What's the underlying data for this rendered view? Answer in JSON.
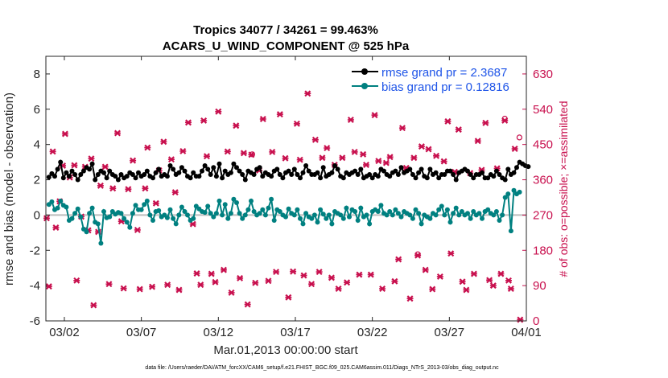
{
  "chart_data": {
    "type": "line",
    "title_line1": "Tropics 34077 / 34261 = 99.463%",
    "title_line2": "ACARS_U_WIND_COMPONENT @ 525 hPa",
    "xlabel": "Mar.01,2013 00:00:00 start",
    "ylabel_left": "rmse and bias (model - observation)",
    "ylabel_right": "# of obs: o=possible; ×=assimilated",
    "footnote": "data file: /Users/raeder/DAI/ATM_forcXX/CAM6_setup/f.e21.FHIST_BGC.f09_025.CAM6assim.011/Diags_NTrS_2013-03/obs_diag_output.nc",
    "x_range": [
      0.8,
      32.0
    ],
    "ylim_left": [
      -6,
      9
    ],
    "ylim_right": [
      0,
      675
    ],
    "x_ticks": [
      {
        "value": 2,
        "label": "03/02"
      },
      {
        "value": 7,
        "label": "03/07"
      },
      {
        "value": 12,
        "label": "03/12"
      },
      {
        "value": 17,
        "label": "03/17"
      },
      {
        "value": 22,
        "label": "03/22"
      },
      {
        "value": 27,
        "label": "03/27"
      },
      {
        "value": 32,
        "label": "04/01"
      }
    ],
    "y_ticks_left": [
      {
        "value": 8,
        "label": "8"
      },
      {
        "value": 6,
        "label": "6"
      },
      {
        "value": 4,
        "label": "4"
      },
      {
        "value": 2,
        "label": "2"
      },
      {
        "value": 0,
        "label": "0"
      },
      {
        "value": -2,
        "label": "-2"
      },
      {
        "value": -4,
        "label": "-4"
      },
      {
        "value": -6,
        "label": "-6"
      }
    ],
    "y_ticks_right": [
      {
        "value": 630,
        "label": "630"
      },
      {
        "value": 540,
        "label": "540"
      },
      {
        "value": 450,
        "label": "450"
      },
      {
        "value": 360,
        "label": "360"
      },
      {
        "value": 270,
        "label": "270"
      },
      {
        "value": 180,
        "label": "180"
      },
      {
        "value": 90,
        "label": "90"
      },
      {
        "value": 0,
        "label": "0"
      }
    ],
    "legend": [
      {
        "label": "rmse grand pr = 2.3687",
        "color": "#000000"
      },
      {
        "label": "bias grand pr = 0.12816",
        "color": "#008080"
      }
    ],
    "colors": {
      "rmse": "#000000",
      "bias": "#008080",
      "obs": "#c8104e",
      "zero_line": "#bdbdbd",
      "legend_text": "#1f55e8"
    },
    "series": [
      {
        "name": "rmse",
        "values": [
          2.15,
          2.35,
          2.2,
          2.6,
          3.0,
          2.1,
          2.4,
          2.2,
          2.5,
          2.3,
          2.0,
          2.3,
          2.5,
          2.7,
          2.6,
          2.9,
          2.0,
          2.3,
          2.5,
          2.4,
          2.1,
          2.5,
          2.3,
          2.2,
          2.0,
          2.3,
          2.1,
          2.2,
          2.4,
          2.3,
          2.1,
          2.4,
          2.2,
          2.3,
          2.5,
          2.2,
          2.1,
          2.4,
          2.6,
          2.2,
          2.3,
          2.2,
          2.8,
          2.6,
          2.3,
          2.4,
          2.7,
          2.5,
          2.2,
          2.1,
          2.4,
          2.2,
          2.2,
          2.5,
          2.8,
          2.6,
          2.3,
          2.7,
          2.2,
          2.9,
          2.1,
          2.5,
          2.3,
          2.4,
          2.9,
          2.7,
          2.5,
          2.3,
          2.0,
          2.5,
          2.4,
          2.3,
          2.6,
          2.7,
          2.2,
          2.4,
          2.3,
          2.2,
          2.5,
          2.6,
          2.3,
          2.1,
          2.4,
          2.5,
          2.3,
          2.6,
          2.3,
          2.1,
          2.4,
          2.8,
          2.5,
          2.3,
          2.3,
          2.4,
          2.1,
          2.7,
          2.2,
          2.3,
          2.4,
          2.8,
          2.6,
          2.2,
          2.1,
          2.4,
          2.3,
          2.4,
          2.5,
          2.3,
          2.6,
          2.1,
          2.2,
          2.3,
          2.1,
          2.3,
          2.2,
          2.6,
          2.5,
          2.3,
          2.2,
          2.4,
          2.5,
          2.3,
          2.7,
          2.4,
          2.5,
          2.6,
          2.3,
          2.1,
          2.4,
          2.6,
          2.2,
          2.1,
          2.6,
          2.3,
          2.4,
          2.1,
          2.3,
          2.3,
          2.5,
          2.5,
          2.3,
          2.0,
          2.4,
          2.5,
          2.6,
          2.5,
          2.3,
          2.1,
          2.3,
          2.3,
          2.4,
          2.1,
          2.1,
          2.3,
          2.2,
          2.5,
          2.3,
          2.1,
          2.0,
          2.6,
          2.3,
          2.4,
          2.7,
          3.0,
          2.9,
          2.8,
          2.75
        ],
        "x_start": 1.0,
        "x_step": 0.1875
      },
      {
        "name": "bias",
        "values": [
          0.6,
          0.75,
          0.3,
          0.4,
          0.8,
          0.55,
          0.45,
          -0.3,
          -0.2,
          0.1,
          0.35,
          -0.1,
          -0.8,
          -0.95,
          0.1,
          0.4,
          -0.4,
          -0.5,
          -1.6,
          0.2,
          -0.15,
          -0.1,
          0.2,
          0.05,
          0.15,
          0.1,
          -0.2,
          -0.4,
          -0.7,
          0.1,
          0.55,
          0.3,
          0.3,
          0.6,
          0.8,
          0.0,
          -0.3,
          0.2,
          0.25,
          -0.1,
          0.0,
          -0.15,
          0.3,
          -0.2,
          -0.5,
          0.0,
          0.45,
          0.2,
          0.0,
          -0.3,
          -0.2,
          0.5,
          0.35,
          0.2,
          0.15,
          0.5,
          0.1,
          -0.1,
          0.1,
          0.8,
          0.0,
          0.6,
          -0.2,
          0.1,
          0.9,
          0.7,
          0.1,
          -0.2,
          0.0,
          0.3,
          0.8,
          0.2,
          0.0,
          0.1,
          0.3,
          0.0,
          0.4,
          0.9,
          -0.3,
          0.3,
          0.2,
          0.0,
          -0.1,
          0.35,
          0.1,
          0.0,
          0.3,
          -0.2,
          -0.5,
          0.1,
          -0.1,
          -0.2,
          0.0,
          -0.4,
          0.3,
          0.05,
          -0.2,
          0.0,
          -0.5,
          0.2,
          0.1,
          0.0,
          -0.2,
          0.4,
          -0.1,
          0.3,
          0.2,
          -0.3,
          0.4,
          -0.1,
          0.0,
          -0.5,
          0.2,
          0.3,
          0.2,
          0.55,
          0.1,
          0.0,
          0.2,
          0.0,
          0.3,
          0.1,
          -0.1,
          0.2,
          0.1,
          0.0,
          -0.2,
          0.3,
          0.1,
          -0.5,
          0.0,
          -0.1,
          -0.2,
          0.1,
          0.0,
          0.3,
          0.5,
          0.0,
          0.3,
          -0.4,
          0.1,
          0.4,
          0.0,
          0.2,
          0.0,
          0.1,
          -0.2,
          0.2,
          0.0,
          0.1,
          -0.2,
          0.2,
          0.3,
          0.1,
          0.0,
          0.2,
          -0.3,
          0.0,
          1.0,
          1.2,
          -0.9,
          1.4,
          1.2,
          1.3
        ],
        "x_start": 1.0,
        "x_step": 0.1875
      }
    ],
    "obs_assimilated": [
      {
        "x": 0.85,
        "y": 262
      },
      {
        "x": 1.0,
        "y": 88
      },
      {
        "x": 1.25,
        "y": 432
      },
      {
        "x": 1.45,
        "y": 238
      },
      {
        "x": 1.7,
        "y": 305
      },
      {
        "x": 1.9,
        "y": 396
      },
      {
        "x": 2.05,
        "y": 477
      },
      {
        "x": 2.35,
        "y": 366
      },
      {
        "x": 2.65,
        "y": 397
      },
      {
        "x": 2.8,
        "y": 103
      },
      {
        "x": 3.1,
        "y": 266
      },
      {
        "x": 3.35,
        "y": 393
      },
      {
        "x": 3.55,
        "y": 231
      },
      {
        "x": 3.75,
        "y": 414
      },
      {
        "x": 3.9,
        "y": 40
      },
      {
        "x": 4.2,
        "y": 227
      },
      {
        "x": 4.35,
        "y": 345
      },
      {
        "x": 4.65,
        "y": 393
      },
      {
        "x": 4.9,
        "y": 94
      },
      {
        "x": 5.15,
        "y": 338
      },
      {
        "x": 5.45,
        "y": 479
      },
      {
        "x": 5.7,
        "y": 254
      },
      {
        "x": 5.85,
        "y": 83
      },
      {
        "x": 6.15,
        "y": 336
      },
      {
        "x": 6.45,
        "y": 409
      },
      {
        "x": 6.75,
        "y": 232
      },
      {
        "x": 6.9,
        "y": 81
      },
      {
        "x": 7.25,
        "y": 338
      },
      {
        "x": 7.4,
        "y": 442
      },
      {
        "x": 7.7,
        "y": 87
      },
      {
        "x": 7.95,
        "y": 300
      },
      {
        "x": 8.15,
        "y": 384
      },
      {
        "x": 8.45,
        "y": 457
      },
      {
        "x": 8.7,
        "y": 92
      },
      {
        "x": 8.95,
        "y": 412
      },
      {
        "x": 9.2,
        "y": 328
      },
      {
        "x": 9.45,
        "y": 79
      },
      {
        "x": 9.7,
        "y": 433
      },
      {
        "x": 10.05,
        "y": 506
      },
      {
        "x": 10.35,
        "y": 247
      },
      {
        "x": 10.6,
        "y": 121
      },
      {
        "x": 10.85,
        "y": 92
      },
      {
        "x": 11.05,
        "y": 511
      },
      {
        "x": 11.25,
        "y": 420
      },
      {
        "x": 11.55,
        "y": 120
      },
      {
        "x": 11.8,
        "y": 99
      },
      {
        "x": 12.0,
        "y": 534
      },
      {
        "x": 12.35,
        "y": 130
      },
      {
        "x": 12.6,
        "y": 432
      },
      {
        "x": 12.85,
        "y": 72
      },
      {
        "x": 13.15,
        "y": 498
      },
      {
        "x": 13.4,
        "y": 109
      },
      {
        "x": 13.65,
        "y": 428
      },
      {
        "x": 13.9,
        "y": 42
      },
      {
        "x": 14.15,
        "y": 424
      },
      {
        "x": 14.4,
        "y": 97
      },
      {
        "x": 14.65,
        "y": 384
      },
      {
        "x": 14.9,
        "y": 515
      },
      {
        "x": 15.25,
        "y": 102
      },
      {
        "x": 15.5,
        "y": 431
      },
      {
        "x": 15.75,
        "y": 125
      },
      {
        "x": 16.0,
        "y": 527
      },
      {
        "x": 16.35,
        "y": 415
      },
      {
        "x": 16.55,
        "y": 60
      },
      {
        "x": 16.85,
        "y": 126
      },
      {
        "x": 17.1,
        "y": 503
      },
      {
        "x": 17.3,
        "y": 411
      },
      {
        "x": 17.55,
        "y": 116
      },
      {
        "x": 17.8,
        "y": 580
      },
      {
        "x": 18.05,
        "y": 94
      },
      {
        "x": 18.3,
        "y": 462
      },
      {
        "x": 18.55,
        "y": 125
      },
      {
        "x": 18.75,
        "y": 416
      },
      {
        "x": 19.05,
        "y": 441
      },
      {
        "x": 19.35,
        "y": 110
      },
      {
        "x": 19.55,
        "y": 398
      },
      {
        "x": 19.8,
        "y": 82
      },
      {
        "x": 20.05,
        "y": 416
      },
      {
        "x": 20.35,
        "y": 98
      },
      {
        "x": 20.6,
        "y": 513
      },
      {
        "x": 20.85,
        "y": 431
      },
      {
        "x": 21.15,
        "y": 118
      },
      {
        "x": 21.4,
        "y": 425
      },
      {
        "x": 21.6,
        "y": 398
      },
      {
        "x": 21.9,
        "y": 118
      },
      {
        "x": 22.15,
        "y": 525
      },
      {
        "x": 22.4,
        "y": 408
      },
      {
        "x": 22.65,
        "y": 82
      },
      {
        "x": 22.9,
        "y": 403
      },
      {
        "x": 23.15,
        "y": 418
      },
      {
        "x": 23.45,
        "y": 101
      },
      {
        "x": 23.7,
        "y": 157
      },
      {
        "x": 23.95,
        "y": 492
      },
      {
        "x": 24.2,
        "y": 390
      },
      {
        "x": 24.45,
        "y": 57
      },
      {
        "x": 24.7,
        "y": 416
      },
      {
        "x": 24.95,
        "y": 167
      },
      {
        "x": 25.2,
        "y": 445
      },
      {
        "x": 25.45,
        "y": 130
      },
      {
        "x": 25.65,
        "y": 438
      },
      {
        "x": 25.9,
        "y": 81
      },
      {
        "x": 26.15,
        "y": 421
      },
      {
        "x": 26.4,
        "y": 113
      },
      {
        "x": 26.65,
        "y": 407
      },
      {
        "x": 26.9,
        "y": 509
      },
      {
        "x": 27.1,
        "y": 172
      },
      {
        "x": 27.35,
        "y": 380
      },
      {
        "x": 27.6,
        "y": 488
      },
      {
        "x": 27.85,
        "y": 100
      },
      {
        "x": 28.1,
        "y": 79
      },
      {
        "x": 28.35,
        "y": 377
      },
      {
        "x": 28.6,
        "y": 120
      },
      {
        "x": 28.85,
        "y": 459
      },
      {
        "x": 29.1,
        "y": 385
      },
      {
        "x": 29.35,
        "y": 505
      },
      {
        "x": 29.6,
        "y": 104
      },
      {
        "x": 29.85,
        "y": 90
      },
      {
        "x": 30.1,
        "y": 389
      },
      {
        "x": 30.35,
        "y": 120
      },
      {
        "x": 30.6,
        "y": 511
      },
      {
        "x": 30.85,
        "y": 103
      },
      {
        "x": 31.0,
        "y": 82
      },
      {
        "x": 31.25,
        "y": 439
      },
      {
        "x": 31.6,
        "y": 3
      }
    ],
    "obs_possible": [
      {
        "x": 14.2,
        "y": 425
      },
      {
        "x": 24.95,
        "y": 170
      },
      {
        "x": 30.6,
        "y": 516
      },
      {
        "x": 31.55,
        "y": 468
      }
    ]
  }
}
